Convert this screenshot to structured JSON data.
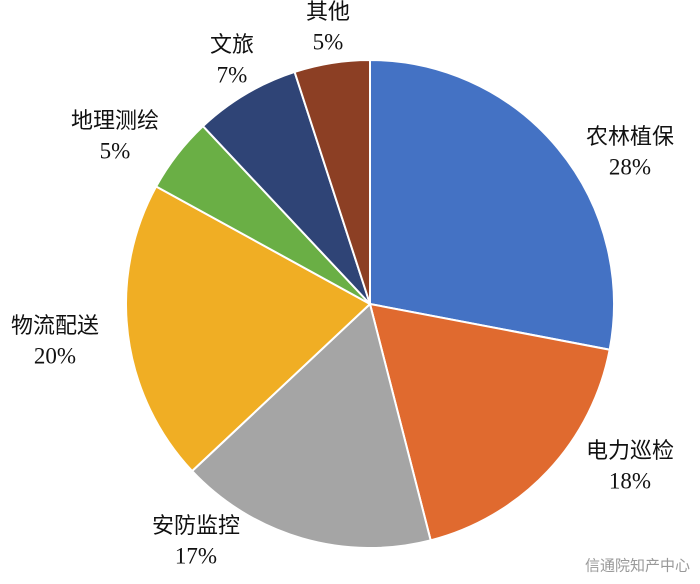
{
  "chart_data": {
    "type": "pie",
    "categories": [
      "农林植保",
      "电力巡检",
      "安防监控",
      "物流配送",
      "地理测绘",
      "文旅",
      "其他"
    ],
    "values": [
      28,
      18,
      17,
      20,
      5,
      7,
      5
    ],
    "value_labels": [
      "28%",
      "18%",
      "17%",
      "20%",
      "5%",
      "7%",
      "5%"
    ],
    "colors": [
      "#4472c4",
      "#e06a2f",
      "#a5a5a5",
      "#f0ae24",
      "#6aaf45",
      "#2f4476",
      "#8c3f24"
    ]
  },
  "watermark": "信通院知产中心"
}
